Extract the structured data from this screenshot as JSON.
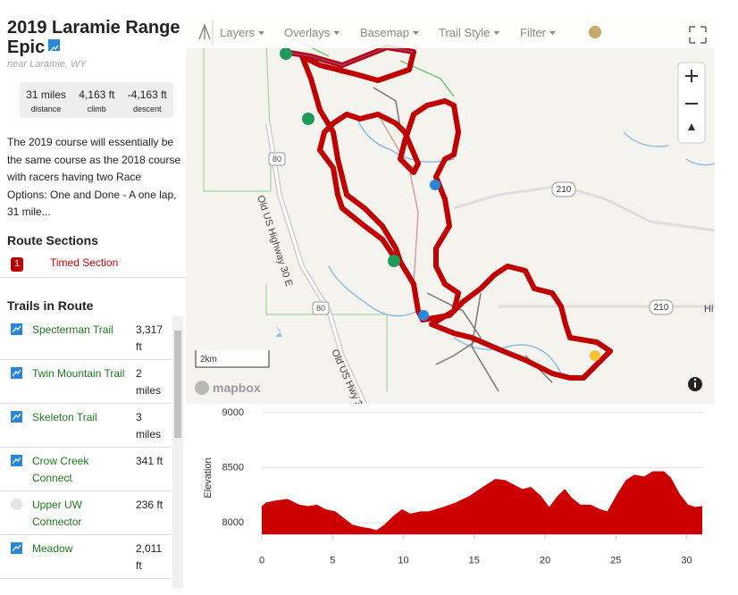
{
  "header": {
    "title": "2019 Laramie Range Epic",
    "location": "near Laramie, WY"
  },
  "stats": [
    {
      "value": "31 miles",
      "label": "distance"
    },
    {
      "value": "4,163 ft",
      "label": "climb"
    },
    {
      "value": "-4,163 ft",
      "label": "descent"
    }
  ],
  "description": "The 2019 course will essentially be the same course as the 2018 course with racers having two Race Options: One and Done - A one lap, 31 mile...",
  "route_sections": {
    "title": "Route Sections",
    "items": [
      {
        "number": "1",
        "name": "Timed Section"
      }
    ]
  },
  "trails": {
    "title": "Trails in Route",
    "items": [
      {
        "name": "Specterman Trail",
        "length": "3,317 ft"
      },
      {
        "name": "Twin Mountain Trail",
        "length": "2 miles"
      },
      {
        "name": "Skeleton Trail",
        "length": "3 miles"
      },
      {
        "name": "Crow Creek Connect",
        "length": "341 ft"
      },
      {
        "name": "Upper UW Connector",
        "length": "236 ft"
      },
      {
        "name": "Meadow",
        "length": "2,011 ft"
      }
    ]
  },
  "map": {
    "toolbar": [
      "Layers",
      "Overlays",
      "Basemap",
      "Trail Style",
      "Filter"
    ],
    "scale": "2km",
    "attribution": "mapbox",
    "road_labels": [
      "210",
      "210",
      "80",
      "80",
      "Old US Highway 30 E",
      "Old US Hwy 3",
      "Hi"
    ]
  },
  "chart_data": {
    "type": "area",
    "ylabel": "Elevation",
    "color": "#cc0000",
    "x": [
      0,
      0.3,
      1.07,
      1.83,
      2.65,
      3.3,
      3.9,
      4.5,
      5.2,
      5.8,
      6.4,
      7.1,
      7.7,
      8.1,
      8.65,
      9.3,
      9.9,
      10.5,
      11.2,
      11.8,
      12.8,
      13.7,
      14.7,
      15.6,
      16.5,
      17.2,
      17.8,
      18.4,
      19.0,
      19.7,
      20.3,
      20.9,
      21.4,
      21.9,
      22.5,
      23.2,
      23.9,
      24.4,
      25.1,
      25.7,
      26.3,
      27.0,
      27.6,
      28.4,
      28.9,
      29.5,
      30.1,
      30.6,
      31.1
    ],
    "values": [
      8150,
      8183,
      8203,
      8215,
      8163,
      8150,
      8163,
      8122,
      8102,
      8041,
      7980,
      7959,
      7947,
      7931,
      7980,
      8061,
      8122,
      8081,
      8102,
      8102,
      8142,
      8183,
      8244,
      8325,
      8398,
      8386,
      8345,
      8305,
      8325,
      8244,
      8142,
      8244,
      8305,
      8224,
      8163,
      8163,
      8122,
      8102,
      8264,
      8386,
      8435,
      8419,
      8467,
      8467,
      8406,
      8264,
      8163,
      8142,
      8150
    ],
    "xlim": [
      0,
      31.1
    ],
    "ylim": [
      7890,
      9040
    ],
    "xticks": [
      0,
      5,
      10,
      15,
      20,
      25,
      30
    ],
    "yticks": [
      8000,
      8500,
      9000
    ],
    "grid": true
  }
}
